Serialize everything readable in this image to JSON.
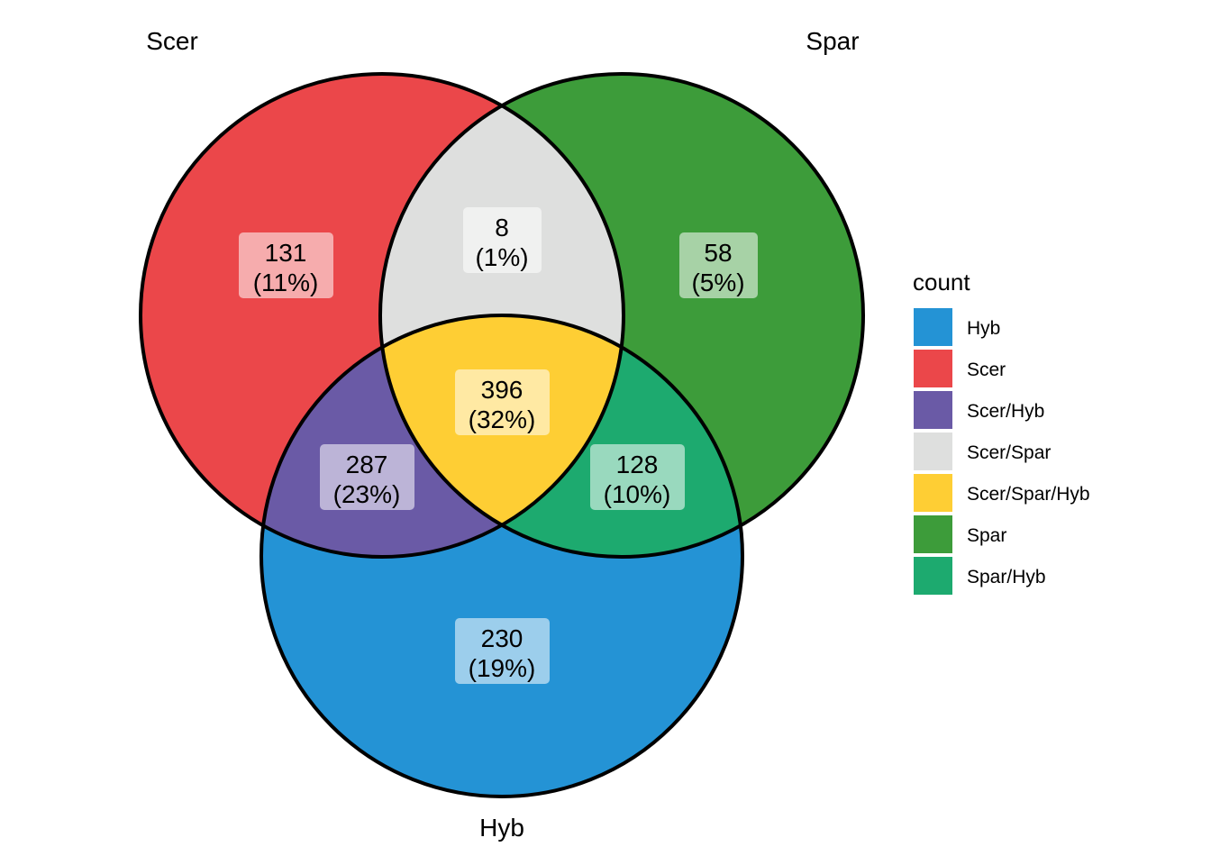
{
  "chart_data": {
    "type": "venn",
    "sets": [
      "Scer",
      "Spar",
      "Hyb"
    ],
    "set_labels": {
      "scer": "Scer",
      "spar": "Spar",
      "hyb": "Hyb"
    },
    "regions": [
      {
        "key": "scer",
        "sets": [
          "Scer"
        ],
        "count": 131,
        "percent_label": "(11%)",
        "color": "#EB474A"
      },
      {
        "key": "scer_spar",
        "sets": [
          "Scer",
          "Spar"
        ],
        "count": 8,
        "percent_label": "(1%)",
        "color": "#DEDFDE"
      },
      {
        "key": "spar",
        "sets": [
          "Spar"
        ],
        "count": 58,
        "percent_label": "(5%)",
        "color": "#3D9C3A"
      },
      {
        "key": "scer_spar_hyb",
        "sets": [
          "Scer",
          "Spar",
          "Hyb"
        ],
        "count": 396,
        "percent_label": "(32%)",
        "color": "#FECE34"
      },
      {
        "key": "scer_hyb",
        "sets": [
          "Scer",
          "Hyb"
        ],
        "count": 287,
        "percent_label": "(23%)",
        "color": "#6A5AA6"
      },
      {
        "key": "spar_hyb",
        "sets": [
          "Spar",
          "Hyb"
        ],
        "count": 128,
        "percent_label": "(10%)",
        "color": "#1DAA6F"
      },
      {
        "key": "hyb",
        "sets": [
          "Hyb"
        ],
        "count": 230,
        "percent_label": "(19%)",
        "color": "#2493D5"
      }
    ],
    "legend": {
      "title": "count",
      "placement": "right",
      "items": [
        {
          "label": "Hyb",
          "color": "#2493D5"
        },
        {
          "label": "Scer",
          "color": "#EB474A"
        },
        {
          "label": "Scer/Hyb",
          "color": "#6A5AA6"
        },
        {
          "label": "Scer/Spar",
          "color": "#DEDFDE"
        },
        {
          "label": "Scer/Spar/Hyb",
          "color": "#FECE34"
        },
        {
          "label": "Spar",
          "color": "#3D9C3A"
        },
        {
          "label": "Spar/Hyb",
          "color": "#1DAA6F"
        }
      ]
    }
  }
}
